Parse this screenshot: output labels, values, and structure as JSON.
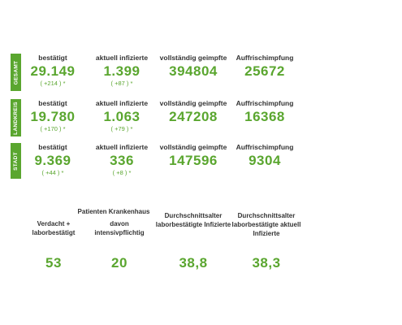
{
  "accent_color": "#5aa62f",
  "rows": [
    {
      "label": "GESAMT",
      "confirmed_label": "bestätigt",
      "confirmed": "29.149",
      "confirmed_delta": "( +214 ) *",
      "active_label": "aktuell infizierte",
      "active": "1.399",
      "active_delta": "( +87 ) *",
      "vaccinated_label": "vollständig geimpfte",
      "vaccinated": "394804",
      "booster_label": "Auffrischimpfung",
      "booster": "25672"
    },
    {
      "label": "LANDKREIS",
      "confirmed_label": "bestätigt",
      "confirmed": "19.780",
      "confirmed_delta": "( +170 ) *",
      "active_label": "aktuell infizierte",
      "active": "1.063",
      "active_delta": "( +79 ) *",
      "vaccinated_label": "vollständig geimpfte",
      "vaccinated": "247208",
      "booster_label": "Auffrischimpfung",
      "booster": "16368"
    },
    {
      "label": "STADT",
      "confirmed_label": "bestätigt",
      "confirmed": "9.369",
      "confirmed_delta": "( +44 ) *",
      "active_label": "aktuell infizierte",
      "active": "336",
      "active_delta": "( +8 ) *",
      "vaccinated_label": "vollständig geimpfte",
      "vaccinated": "147596",
      "booster_label": "Auffrischimpfung",
      "booster": "9304"
    }
  ],
  "hospital": {
    "heading": "Patienten Krankenhaus",
    "suspected_label": "Verdacht + laborbestätigt",
    "suspected": "53",
    "icu_label": "davon intensivpflichtig",
    "icu": "20",
    "avg_age_lab_label": "Durchschnittsalter laborbestätigte Infizierte",
    "avg_age_lab": "38,8",
    "avg_age_active_label": "Durchschnittsalter laborbestätigte aktuell Infizierte",
    "avg_age_active": "38,3"
  }
}
